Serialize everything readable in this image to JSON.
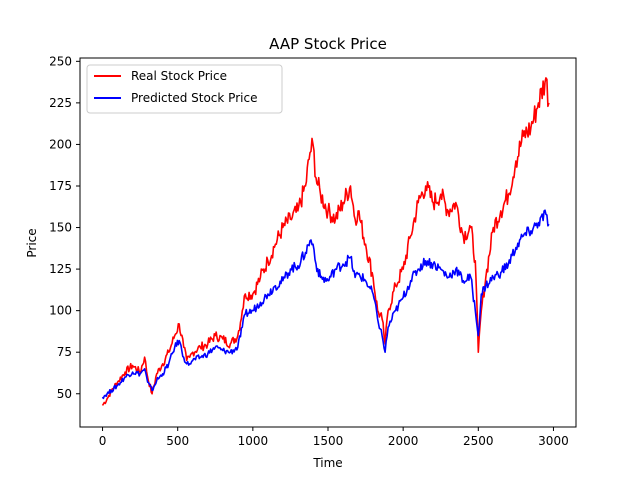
{
  "chart_data": {
    "type": "line",
    "title": "AAP Stock Price",
    "xlabel": "Time",
    "ylabel": "Price",
    "xlim": [
      -150,
      3150
    ],
    "ylim": [
      30,
      252
    ],
    "xticks": [
      0,
      500,
      1000,
      1500,
      2000,
      2500,
      3000
    ],
    "yticks": [
      50,
      75,
      100,
      125,
      150,
      175,
      200,
      225,
      250
    ],
    "grid": false,
    "legend_position": "upper-left",
    "series": [
      {
        "name": "Real Stock Price",
        "color": "#ff0000",
        "x": [
          0,
          30,
          60,
          100,
          150,
          200,
          250,
          280,
          300,
          330,
          360,
          400,
          440,
          480,
          510,
          540,
          560,
          580,
          600,
          650,
          700,
          750,
          800,
          850,
          900,
          930,
          950,
          1000,
          1050,
          1100,
          1150,
          1200,
          1250,
          1300,
          1350,
          1380,
          1400,
          1420,
          1450,
          1500,
          1550,
          1600,
          1650,
          1680,
          1700,
          1750,
          1800,
          1830,
          1860,
          1880,
          1900,
          1950,
          2000,
          2050,
          2100,
          2150,
          2200,
          2250,
          2300,
          2350,
          2400,
          2450,
          2480,
          2500,
          2520,
          2550,
          2600,
          2650,
          2700,
          2750,
          2800,
          2850,
          2900,
          2950,
          2970
        ],
        "values": [
          43,
          47,
          52,
          57,
          63,
          67,
          63,
          72,
          60,
          50,
          62,
          68,
          75,
          85,
          92,
          78,
          70,
          72,
          75,
          78,
          80,
          85,
          83,
          80,
          85,
          100,
          110,
          110,
          120,
          130,
          140,
          150,
          155,
          160,
          175,
          195,
          200,
          180,
          170,
          160,
          155,
          165,
          175,
          155,
          160,
          140,
          120,
          100,
          95,
          80,
          100,
          115,
          125,
          145,
          165,
          175,
          165,
          170,
          160,
          165,
          145,
          150,
          130,
          75,
          100,
          120,
          150,
          160,
          170,
          190,
          205,
          210,
          225,
          240,
          225
        ]
      },
      {
        "name": "Predicted Stock Price",
        "color": "#0000ff",
        "x": [
          0,
          30,
          60,
          100,
          150,
          200,
          250,
          280,
          300,
          330,
          360,
          400,
          440,
          480,
          510,
          540,
          560,
          580,
          600,
          650,
          700,
          750,
          800,
          850,
          900,
          930,
          950,
          1000,
          1050,
          1100,
          1150,
          1200,
          1250,
          1300,
          1350,
          1380,
          1400,
          1420,
          1450,
          1500,
          1550,
          1600,
          1650,
          1680,
          1700,
          1750,
          1800,
          1830,
          1860,
          1880,
          1900,
          1950,
          2000,
          2050,
          2100,
          2150,
          2200,
          2250,
          2300,
          2350,
          2400,
          2450,
          2480,
          2500,
          2520,
          2550,
          2600,
          2650,
          2700,
          2750,
          2800,
          2850,
          2900,
          2950,
          2970
        ],
        "values": [
          48,
          50,
          52,
          55,
          60,
          63,
          62,
          65,
          57,
          52,
          58,
          62,
          68,
          78,
          82,
          72,
          68,
          68,
          70,
          72,
          74,
          78,
          76,
          75,
          78,
          90,
          98,
          100,
          105,
          110,
          115,
          118,
          125,
          127,
          135,
          142,
          140,
          128,
          120,
          118,
          125,
          128,
          132,
          120,
          122,
          118,
          110,
          95,
          85,
          75,
          90,
          100,
          108,
          118,
          125,
          130,
          128,
          125,
          120,
          125,
          118,
          120,
          100,
          85,
          110,
          115,
          120,
          123,
          128,
          138,
          145,
          148,
          153,
          158,
          152
        ]
      }
    ]
  }
}
